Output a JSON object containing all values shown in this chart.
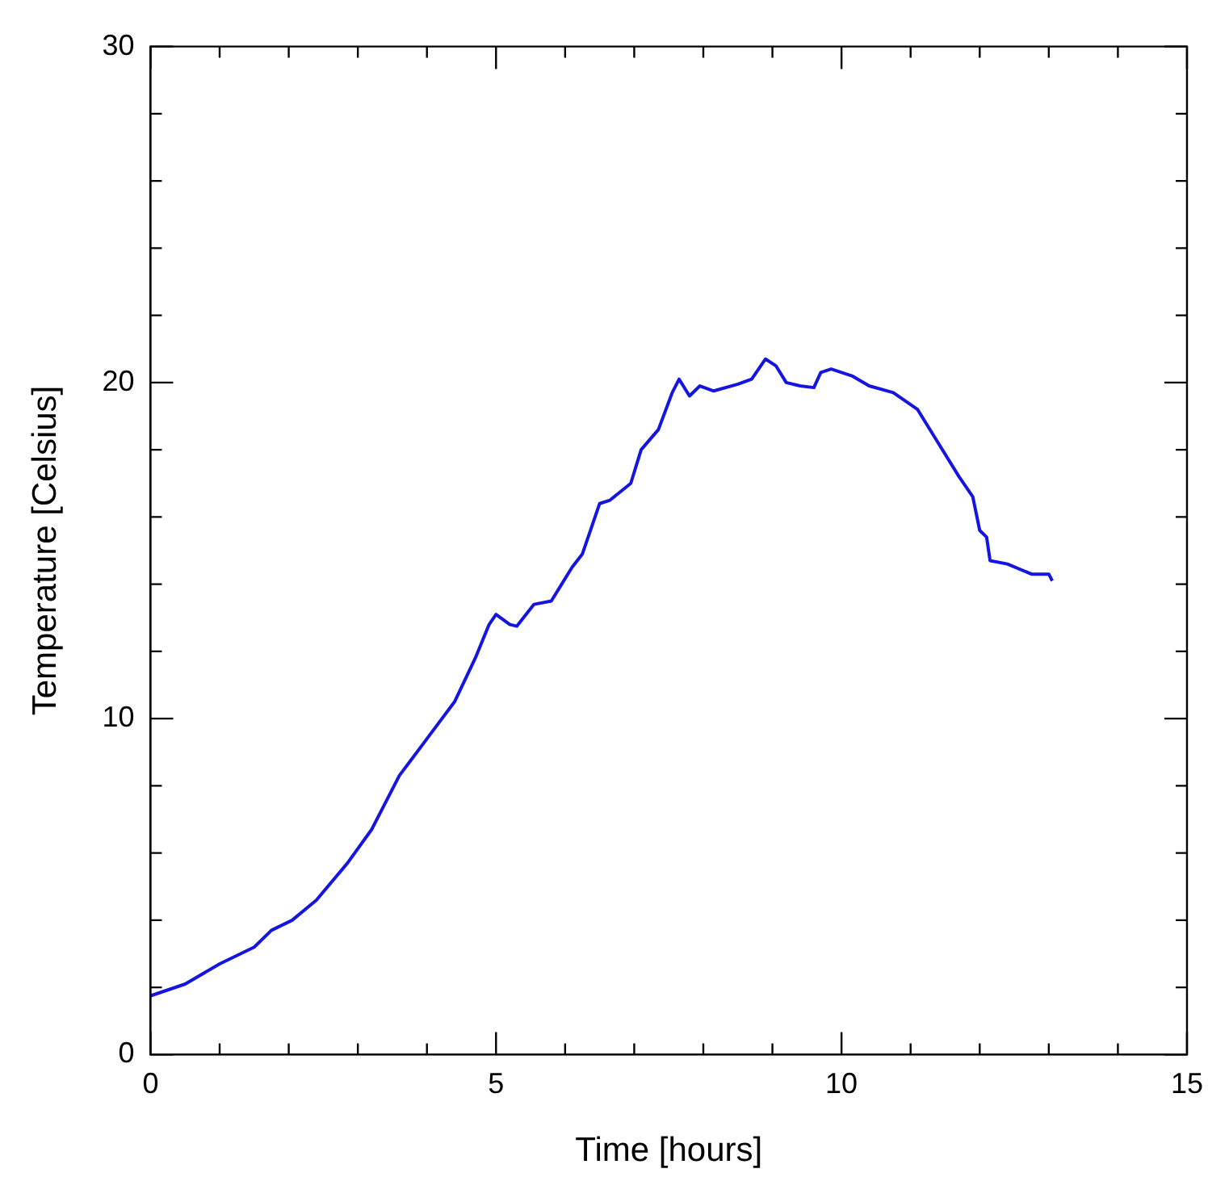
{
  "chart_data": {
    "type": "line",
    "xlabel": "Time [hours]",
    "ylabel": "Temperature [Celsius]",
    "xlim": [
      0,
      15
    ],
    "ylim": [
      0,
      30
    ],
    "xticks": [
      0,
      {
        "value": 1,
        "label": null
      },
      {
        "value": 2,
        "label": null
      },
      {
        "value": 3,
        "label": null
      },
      {
        "value": 4,
        "label": null
      },
      5,
      {
        "value": 6,
        "label": null
      },
      {
        "value": 7,
        "label": null
      },
      {
        "value": 8,
        "label": null
      },
      {
        "value": 9,
        "label": null
      },
      10,
      {
        "value": 11,
        "label": null
      },
      {
        "value": 12,
        "label": null
      },
      {
        "value": 13,
        "label": null
      },
      {
        "value": 14,
        "label": null
      },
      15
    ],
    "yticks": [
      0,
      {
        "value": 2,
        "label": null
      },
      {
        "value": 4,
        "label": null
      },
      {
        "value": 6,
        "label": null
      },
      {
        "value": 8,
        "label": null
      },
      10,
      {
        "value": 12,
        "label": null
      },
      {
        "value": 14,
        "label": null
      },
      {
        "value": 16,
        "label": null
      },
      {
        "value": 18,
        "label": null
      },
      20,
      {
        "value": 22,
        "label": null
      },
      {
        "value": 24,
        "label": null
      },
      {
        "value": 26,
        "label": null
      },
      {
        "value": 28,
        "label": null
      },
      30
    ],
    "grid": false,
    "legend": false,
    "marker": "none",
    "line_style": "solid",
    "series": [
      {
        "color": "#1515e0",
        "x": [
          0,
          0.5,
          1.0,
          1.5,
          1.75,
          2.05,
          2.4,
          2.85,
          3.2,
          3.6,
          4.0,
          4.4,
          4.7,
          4.9,
          5.0,
          5.2,
          5.3,
          5.55,
          5.8,
          5.95,
          6.1,
          6.25,
          6.5,
          6.65,
          6.95,
          7.1,
          7.35,
          7.55,
          7.65,
          7.8,
          7.95,
          8.15,
          8.5,
          8.7,
          8.9,
          9.05,
          9.2,
          9.4,
          9.6,
          9.7,
          9.85,
          10.15,
          10.4,
          10.75,
          11.1,
          11.4,
          11.7,
          11.9,
          12.0,
          12.1,
          12.15,
          12.4,
          12.75,
          13.0,
          13.05
        ],
        "values": [
          1.75,
          2.1,
          2.7,
          3.2,
          3.7,
          4.0,
          4.6,
          5.7,
          6.7,
          8.3,
          9.4,
          10.5,
          11.8,
          12.8,
          13.1,
          12.8,
          12.75,
          13.4,
          13.5,
          14.0,
          14.5,
          14.9,
          16.4,
          16.5,
          17.0,
          18.0,
          18.6,
          19.7,
          20.1,
          19.6,
          19.9,
          19.75,
          19.95,
          20.1,
          20.7,
          20.5,
          20.0,
          19.9,
          19.85,
          20.3,
          20.4,
          20.2,
          19.9,
          19.7,
          19.2,
          18.2,
          17.2,
          16.6,
          15.6,
          15.4,
          14.7,
          14.6,
          14.3,
          14.3,
          14.1
        ]
      }
    ]
  }
}
